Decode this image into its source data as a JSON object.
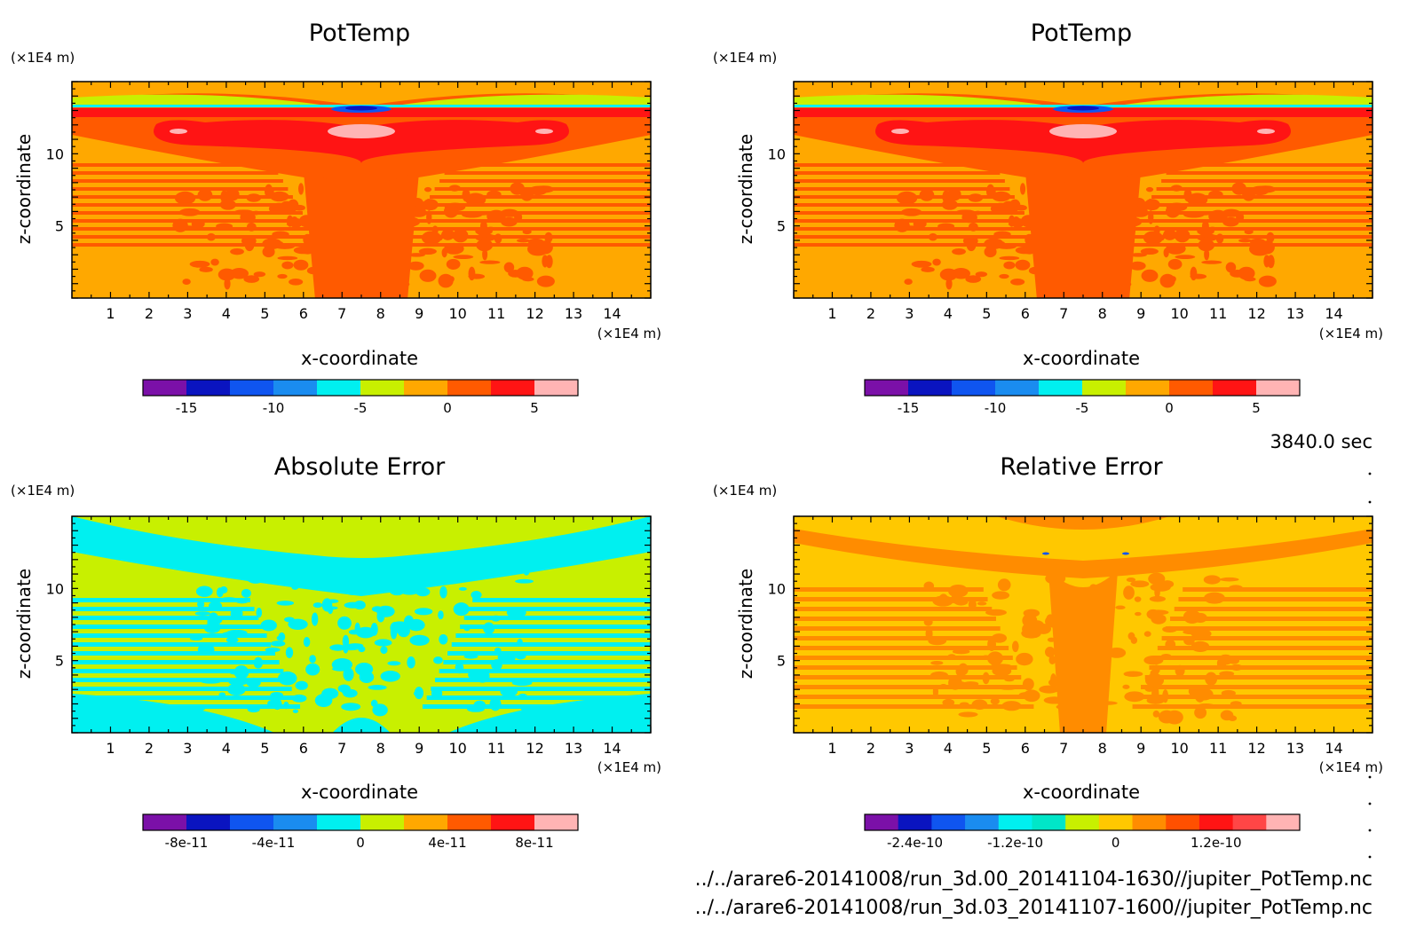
{
  "chart_data": [
    {
      "type": "heatmap",
      "title": "PotTemp",
      "xlabel": "x-coordinate",
      "ylabel": "z-coordinate",
      "x_unit": "(×1E4 m)",
      "z_unit": "(×1E4 m)",
      "xlim": [
        0,
        15
      ],
      "zlim": [
        0,
        15
      ],
      "x_ticks": [
        "1",
        "2",
        "3",
        "4",
        "5",
        "6",
        "7",
        "8",
        "9",
        "10",
        "11",
        "12",
        "13",
        "14"
      ],
      "z_ticks": [
        "5",
        "10"
      ],
      "colorbar": {
        "colors": [
          "#7b10a8",
          "#0a14c0",
          "#0f55f0",
          "#1a8cf0",
          "#00f0f0",
          "#c8f000",
          "#ffa800",
          "#ff5a00",
          "#ff1414",
          "#ffb4b4"
        ],
        "labels": [
          "-15",
          "-10",
          "-5",
          "0",
          "5"
        ]
      }
    },
    {
      "type": "heatmap",
      "title": "PotTemp",
      "xlabel": "x-coordinate",
      "ylabel": "z-coordinate",
      "x_unit": "(×1E4 m)",
      "z_unit": "(×1E4 m)",
      "xlim": [
        0,
        15
      ],
      "zlim": [
        0,
        15
      ],
      "x_ticks": [
        "1",
        "2",
        "3",
        "4",
        "5",
        "6",
        "7",
        "8",
        "9",
        "10",
        "11",
        "12",
        "13",
        "14"
      ],
      "z_ticks": [
        "5",
        "10"
      ],
      "colorbar": {
        "colors": [
          "#7b10a8",
          "#0a14c0",
          "#0f55f0",
          "#1a8cf0",
          "#00f0f0",
          "#c8f000",
          "#ffa800",
          "#ff5a00",
          "#ff1414",
          "#ffb4b4"
        ],
        "labels": [
          "-15",
          "-10",
          "-5",
          "0",
          "5"
        ]
      }
    },
    {
      "type": "heatmap",
      "title": "Absolute Error",
      "xlabel": "x-coordinate",
      "ylabel": "z-coordinate",
      "x_unit": "(×1E4 m)",
      "z_unit": "(×1E4 m)",
      "xlim": [
        0,
        15
      ],
      "zlim": [
        0,
        15
      ],
      "x_ticks": [
        "1",
        "2",
        "3",
        "4",
        "5",
        "6",
        "7",
        "8",
        "9",
        "10",
        "11",
        "12",
        "13",
        "14"
      ],
      "z_ticks": [
        "5",
        "10"
      ],
      "colorbar": {
        "colors": [
          "#7b10a8",
          "#0a14c0",
          "#0f55f0",
          "#1a8cf0",
          "#00f0f0",
          "#c8f000",
          "#ffa800",
          "#ff5a00",
          "#ff1414",
          "#ffb4b4"
        ],
        "labels": [
          "-8e-11",
          "-4e-11",
          "0",
          "4e-11",
          "8e-11"
        ]
      }
    },
    {
      "type": "heatmap",
      "title": "Relative Error",
      "xlabel": "x-coordinate",
      "ylabel": "z-coordinate",
      "x_unit": "(×1E4 m)",
      "z_unit": "(×1E4 m)",
      "xlim": [
        0,
        15
      ],
      "zlim": [
        0,
        15
      ],
      "x_ticks": [
        "1",
        "2",
        "3",
        "4",
        "5",
        "6",
        "7",
        "8",
        "9",
        "10",
        "11",
        "12",
        "13",
        "14"
      ],
      "z_ticks": [
        "5",
        "10"
      ],
      "colorbar": {
        "colors": [
          "#7b10a8",
          "#0a14c0",
          "#0f55f0",
          "#1a8cf0",
          "#00f0f0",
          "#00e6c8",
          "#c8f000",
          "#ffc800",
          "#ff8c00",
          "#ff5000",
          "#ff1414",
          "#ff4646",
          "#ffb4b4"
        ],
        "labels": [
          "-2.4e-10",
          "-1.2e-10",
          "0",
          "1.2e-10"
        ]
      }
    }
  ],
  "annotations": {
    "time": "3840.0 sec",
    "file_1": "../../arare6-20141008/run_3d.00_20141104-1630//jupiter_PotTemp.nc",
    "file_2": "../../arare6-20141008/run_3d.03_20141107-1600//jupiter_PotTemp.nc"
  }
}
